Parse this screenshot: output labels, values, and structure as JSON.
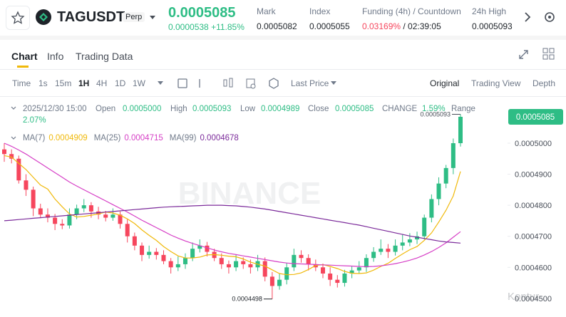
{
  "header": {
    "symbol": "TAGUSDT",
    "contract": "Perp",
    "price": "0.0005085",
    "change": "0.0000538",
    "change_pct": "+11.85%",
    "stats": [
      {
        "label": "Mark",
        "value": "0.0005082"
      },
      {
        "label": "Index",
        "value": "0.0005055"
      },
      {
        "label": "Funding (4h) / Countdown",
        "value": "0.03169%",
        "extra": "/ 02:39:05"
      },
      {
        "label": "24h High",
        "value": "0.0005093"
      }
    ]
  },
  "tabs": [
    "Chart",
    "Info",
    "Trading Data"
  ],
  "toolbar": {
    "intervals": [
      "Time",
      "1s",
      "15m",
      "1H",
      "4H",
      "1D",
      "1W"
    ],
    "price_type": "Last Price",
    "views": [
      "Original",
      "Trading View",
      "Depth"
    ]
  },
  "chart_data": {
    "type": "candlestick",
    "up_color": "#2ebd85",
    "down_color": "#f6465d",
    "ohlc_legend": {
      "time": "2025/12/30 15:00",
      "open_label": "Open",
      "open": "0.0005000",
      "high_label": "High",
      "high": "0.0005093",
      "low_label": "Low",
      "low": "0.0004989",
      "close_label": "Close",
      "close": "0.0005085",
      "change_label": "CHANGE",
      "change": "1.59%",
      "range_label": "Range",
      "range": "2.07%"
    },
    "last_price": "0.0005085",
    "high_marker": "0.0005093",
    "low_marker": "0.0004498",
    "watermark": "BINANCE",
    "credit": "Kontur",
    "ylim": [
      0.000444,
      0.000514
    ],
    "yticks": [
      {
        "value": 0.0005,
        "label": "0.0005000"
      },
      {
        "value": 0.00049,
        "label": "0.0004900"
      },
      {
        "value": 0.00048,
        "label": "0.0004800"
      },
      {
        "value": 0.00047,
        "label": "0.0004700"
      },
      {
        "value": 0.00046,
        "label": "0.0004600"
      },
      {
        "value": 0.00045,
        "label": "0.0004500"
      }
    ],
    "open": [
      0.000498,
      0.0004965,
      0.000495,
      0.000488,
      0.000485,
      0.000479,
      0.000477,
      0.000476,
      0.000474,
      0.0004735,
      0.000477,
      0.000479,
      0.00048,
      0.000478,
      0.000477,
      0.000476,
      0.000477,
      0.000474,
      0.00047,
      0.000467,
      0.000464,
      0.000465,
      0.000464,
      0.000462,
      0.00046,
      0.000461,
      0.000463,
      0.000466,
      0.000467,
      0.000465,
      0.000463,
      0.000461,
      0.00046,
      0.000462,
      0.000461,
      0.00046,
      0.000462,
      0.000457,
      0.000454,
      0.000456,
      0.00046,
      0.000464,
      0.000463,
      0.000461,
      0.00046,
      0.000458,
      0.000456,
      0.000455,
      0.000458,
      0.000459,
      0.00046,
      0.000463,
      0.000465,
      0.000466,
      0.000465,
      0.000467,
      0.000468,
      0.000469,
      0.00047,
      0.000476,
      0.000482,
      0.000487,
      0.000492,
      0.0005
    ],
    "high": [
      0.0005,
      0.000498,
      0.000496,
      0.00049,
      0.000486,
      0.0004805,
      0.000479,
      0.0004772,
      0.0004755,
      0.000479,
      0.0004802,
      0.000482,
      0.000481,
      0.0004795,
      0.0004782,
      0.000479,
      0.000478,
      0.0004755,
      0.0004712,
      0.000468,
      0.000467,
      0.0004662,
      0.0004655,
      0.000463,
      0.0004635,
      0.0004645,
      0.000468,
      0.000469,
      0.0004682,
      0.000466,
      0.0004645,
      0.0004622,
      0.000464,
      0.0004632,
      0.0004625,
      0.000464,
      0.0004632,
      0.0004585,
      0.000458,
      0.0004615,
      0.000466,
      0.0004655,
      0.0004642,
      0.0004625,
      0.0004612,
      0.00046,
      0.0004575,
      0.0004592,
      0.0004605,
      0.000462,
      0.0004642,
      0.0004665,
      0.000469,
      0.0004675,
      0.000469,
      0.0004705,
      0.000471,
      0.0004715,
      0.000477,
      0.0004835,
      0.000489,
      0.000493,
      0.0005015,
      0.0005093
    ],
    "low": [
      0.000494,
      0.0004935,
      0.000487,
      0.000483,
      0.0004765,
      0.000476,
      0.0004745,
      0.000472,
      0.0004723,
      0.0004725,
      0.0004755,
      0.0004778,
      0.000476,
      0.0004755,
      0.0004748,
      0.000475,
      0.0004725,
      0.000468,
      0.0004655,
      0.000462,
      0.0004628,
      0.0004625,
      0.000461,
      0.000458,
      0.0004588,
      0.0004595,
      0.000462,
      0.0004648,
      0.0004635,
      0.000462,
      0.0004595,
      0.000458,
      0.0004588,
      0.0004595,
      0.000458,
      0.0004588,
      0.0004555,
      0.0004498,
      0.0004528,
      0.0004545,
      0.0004588,
      0.0004615,
      0.000459,
      0.0004588,
      0.0004565,
      0.000454,
      0.0004535,
      0.0004538,
      0.0004565,
      0.000458,
      0.0004585,
      0.0004618,
      0.000464,
      0.000463,
      0.0004638,
      0.0004655,
      0.0004668,
      0.0004675,
      0.000469,
      0.0004745,
      0.00048,
      0.0004855,
      0.00049,
      0.0004989
    ],
    "close": [
      0.0004965,
      0.000495,
      0.000488,
      0.000485,
      0.000479,
      0.000477,
      0.000476,
      0.000474,
      0.0004735,
      0.000477,
      0.000479,
      0.00048,
      0.000478,
      0.000477,
      0.000476,
      0.000477,
      0.000474,
      0.00047,
      0.000467,
      0.000464,
      0.000465,
      0.000464,
      0.000462,
      0.00046,
      0.000461,
      0.000463,
      0.000466,
      0.000467,
      0.000465,
      0.000463,
      0.000461,
      0.00046,
      0.000462,
      0.000461,
      0.00046,
      0.000462,
      0.000457,
      0.000454,
      0.000456,
      0.00046,
      0.000464,
      0.000463,
      0.000461,
      0.00046,
      0.000458,
      0.000456,
      0.000455,
      0.000458,
      0.000459,
      0.00046,
      0.000463,
      0.000465,
      0.000466,
      0.000465,
      0.000467,
      0.000468,
      0.000469,
      0.00047,
      0.000476,
      0.000482,
      0.000487,
      0.000492,
      0.0005,
      0.0005085
    ],
    "series": [
      {
        "name": "MA(7)",
        "color": "#f0b90b",
        "value_label": "0.0004909",
        "values": [
          0.000496,
          0.0004955,
          0.0004935,
          0.0004915,
          0.000489,
          0.0004865,
          0.0004852,
          0.000482,
          0.0004795,
          0.0004772,
          0.0004762,
          0.0004764,
          0.0004768,
          0.0004772,
          0.0004778,
          0.0004775,
          0.0004768,
          0.0004756,
          0.0004741,
          0.0004721,
          0.0004703,
          0.0004687,
          0.0004667,
          0.0004651,
          0.0004637,
          0.000463,
          0.000463,
          0.0004633,
          0.000464,
          0.0004641,
          0.0004639,
          0.0004636,
          0.0004634,
          0.0004627,
          0.0004617,
          0.000461,
          0.0004604,
          0.0004592,
          0.000458,
          0.0004576,
          0.0004577,
          0.0004582,
          0.0004593,
          0.0004606,
          0.0004609,
          0.0004603,
          0.0004596,
          0.0004587,
          0.0004581,
          0.000458,
          0.0004582,
          0.0004591,
          0.0004603,
          0.0004613,
          0.0004629,
          0.0004643,
          0.0004657,
          0.0004667,
          0.0004687,
          0.0004711,
          0.0004746,
          0.0004784,
          0.000483,
          0.0004909
        ]
      },
      {
        "name": "MA(25)",
        "color": "#d63fc6",
        "value_label": "0.0004715",
        "values": [
          0.0005,
          0.000499,
          0.0004978,
          0.0004965,
          0.000495,
          0.0004935,
          0.000492,
          0.0004905,
          0.000489,
          0.0004875,
          0.0004862,
          0.000485,
          0.0004838,
          0.0004826,
          0.0004814,
          0.0004802,
          0.000479,
          0.0004778,
          0.0004765,
          0.0004752,
          0.000474,
          0.0004728,
          0.0004716,
          0.0004704,
          0.0004694,
          0.0004685,
          0.0004677,
          0.000467,
          0.0004663,
          0.0004656,
          0.000465,
          0.0004645,
          0.0004641,
          0.0004637,
          0.0004633,
          0.0004629,
          0.0004625,
          0.0004621,
          0.0004617,
          0.0004614,
          0.0004612,
          0.0004611,
          0.000461,
          0.0004609,
          0.0004608,
          0.0004607,
          0.0004606,
          0.0004605,
          0.0004604,
          0.0004603,
          0.0004602,
          0.0004603,
          0.0004605,
          0.0004608,
          0.0004612,
          0.0004617,
          0.0004623,
          0.000463,
          0.000464,
          0.0004651,
          0.0004664,
          0.0004679,
          0.0004697,
          0.0004715
        ]
      },
      {
        "name": "MA(99)",
        "color": "#7b2a9a",
        "value_label": "0.0004678",
        "values": [
          0.000475,
          0.0004752,
          0.0004754,
          0.0004756,
          0.0004758,
          0.000476,
          0.0004762,
          0.0004764,
          0.0004766,
          0.0004768,
          0.000477,
          0.0004772,
          0.0004774,
          0.0004776,
          0.0004778,
          0.000478,
          0.0004782,
          0.0004784,
          0.0004786,
          0.0004788,
          0.000479,
          0.0004792,
          0.0004794,
          0.0004795,
          0.0004796,
          0.0004797,
          0.0004798,
          0.0004799,
          0.00048,
          0.00048,
          0.00048,
          0.0004799,
          0.0004798,
          0.0004796,
          0.0004794,
          0.0004791,
          0.0004788,
          0.0004784,
          0.000478,
          0.0004776,
          0.0004772,
          0.0004768,
          0.0004764,
          0.000476,
          0.0004756,
          0.0004752,
          0.0004748,
          0.0004744,
          0.000474,
          0.0004736,
          0.0004731,
          0.0004726,
          0.0004721,
          0.0004716,
          0.0004711,
          0.0004706,
          0.0004701,
          0.0004697,
          0.0004693,
          0.0004689,
          0.0004685,
          0.0004682,
          0.000468,
          0.0004678
        ]
      }
    ]
  }
}
